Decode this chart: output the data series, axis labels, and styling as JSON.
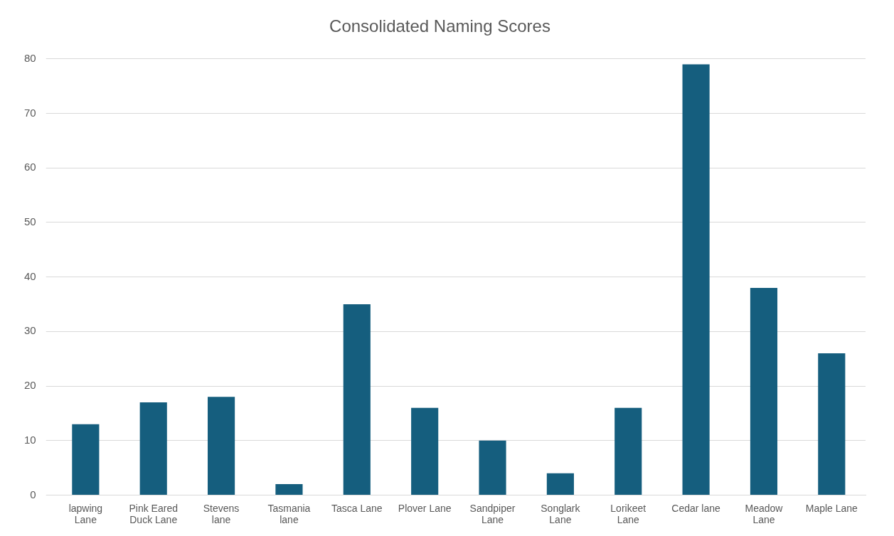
{
  "chart_data": {
    "type": "bar",
    "title": "Consolidated Naming Scores",
    "categories": [
      "lapwing Lane",
      "Pink Eared Duck Lane",
      "Stevens lane",
      "Tasmania lane",
      "Tasca Lane",
      "Plover Lane",
      "Sandpiper Lane",
      "Songlark Lane",
      "Lorikeet Lane",
      "Cedar lane",
      "Meadow Lane",
      "Maple Lane"
    ],
    "values": [
      13,
      17,
      18,
      2,
      35,
      16,
      10,
      4,
      16,
      79,
      38,
      26
    ],
    "color": "#155e7e",
    "ylim": [
      0,
      80
    ],
    "yticks": [
      0,
      10,
      20,
      30,
      40,
      50,
      60,
      70,
      80
    ],
    "grid": "y",
    "legend": false
  }
}
